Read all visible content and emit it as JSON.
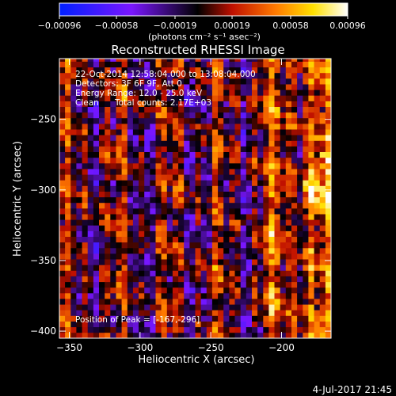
{
  "chart_data": {
    "type": "heatmap",
    "title": "Reconstructed RHESSI Image",
    "xlabel": "Heliocentric X (arcsec)",
    "ylabel": "Heliocentric Y (arcsec)",
    "xlim": [
      -357,
      -165
    ],
    "ylim": [
      -405,
      -207
    ],
    "x_ticks": [
      -350,
      -300,
      -250,
      -200
    ],
    "y_ticks": [
      -250,
      -300,
      -350,
      -400
    ],
    "x_tick_labels": [
      "−350",
      "−300",
      "−250",
      "−200"
    ],
    "y_tick_labels": [
      "−250",
      "−300",
      "−350",
      "−400"
    ],
    "colorbar": {
      "range": [
        -0.00096,
        0.00096
      ],
      "tick_values": [
        -0.00096,
        -0.00058,
        -0.00019,
        0.00019,
        0.00058,
        0.00096
      ],
      "tick_labels": [
        "−0.00096",
        "−0.00058",
        "−0.00019",
        "0.00019",
        "0.00058",
        "0.00096"
      ],
      "unit_label": "(photons cm⁻² s⁻¹ asec⁻²)",
      "colormap": "blue-purple-black-red-orange-yellow-white",
      "colors": [
        "#0020ff",
        "#7a16ff",
        "#000000",
        "#c01000",
        "#ff7a00",
        "#ffe000",
        "#ffffff"
      ]
    },
    "grid": false,
    "peak": {
      "x": -167,
      "y": -296
    },
    "pixel_size_arcsec": 4,
    "grid_size": [
      48,
      50
    ]
  },
  "annotations": {
    "time_range": "22-Oct-2014 12:58:04.000 to 13:08:04.000",
    "detectors": "Detectors: 3F 6F 9F, Att 0",
    "energy": "Energy Range: 12.0 - 25.0 keV",
    "clean": "Clean",
    "counts": "Total counts: 2.17E+03",
    "peak_label": "Position of Peak = [-167,-296]"
  },
  "footer": {
    "timestamp": "4-Jul-2017 21:45"
  }
}
